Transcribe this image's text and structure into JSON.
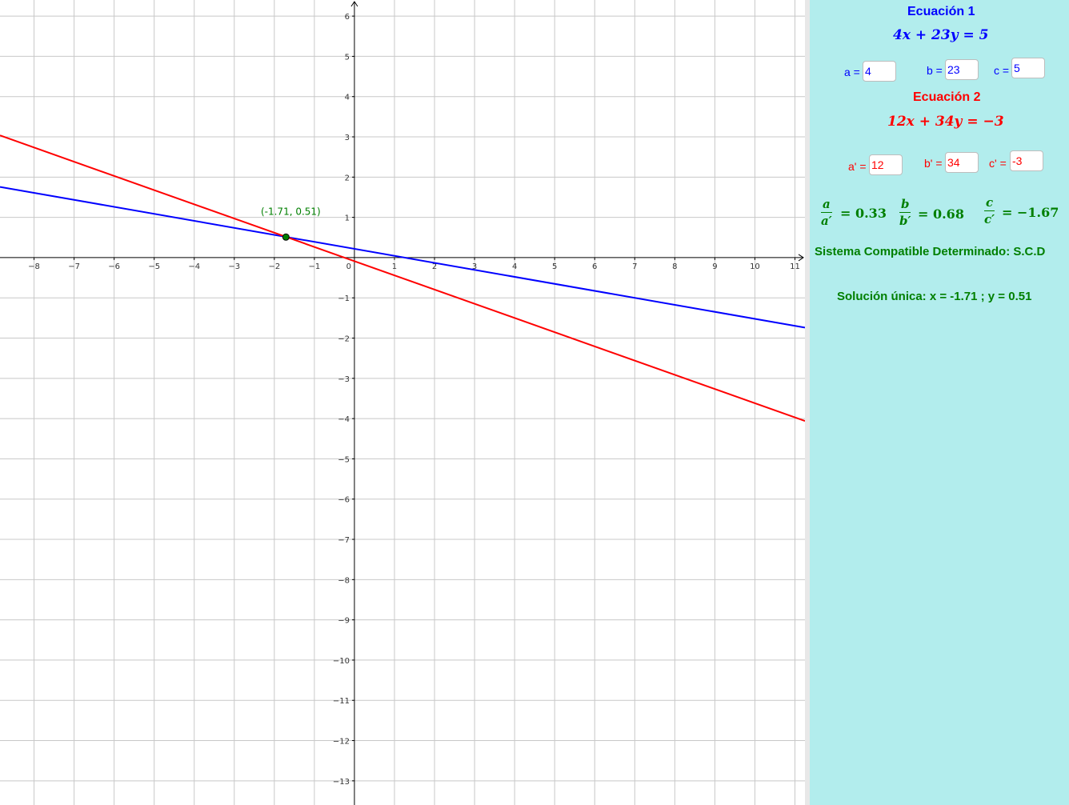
{
  "graph": {
    "x_ticks": [
      "−8",
      "−7",
      "−6",
      "−5",
      "−4",
      "−3",
      "−2",
      "−1",
      "0",
      "1",
      "2",
      "3",
      "4",
      "5",
      "6",
      "7",
      "8",
      "9",
      "10",
      "11"
    ],
    "x_tick_values": [
      -8,
      -7,
      -6,
      -5,
      -4,
      -3,
      -2,
      -1,
      0,
      1,
      2,
      3,
      4,
      5,
      6,
      7,
      8,
      9,
      10,
      11
    ],
    "y_ticks": [
      "6",
      "5",
      "4",
      "3",
      "2",
      "1",
      "−1",
      "−2",
      "−3",
      "−4",
      "−5",
      "−6",
      "−7",
      "−8",
      "−9",
      "−10",
      "−11",
      "−12",
      "−13"
    ],
    "y_tick_values": [
      6,
      5,
      4,
      3,
      2,
      1,
      -1,
      -2,
      -3,
      -4,
      -5,
      -6,
      -7,
      -8,
      -9,
      -10,
      -11,
      -12,
      -13
    ],
    "x_range": [
      -8.85,
      11.25
    ],
    "y_range": [
      -13.6,
      6.4
    ],
    "line1": {
      "a": 4,
      "b": 23,
      "c": 5,
      "color": "#0000ff"
    },
    "line2": {
      "a": 12,
      "b": 34,
      "c": -3,
      "color": "#ff0000"
    },
    "intersection": {
      "x": -1.71,
      "y": 0.51,
      "label": "(-1.71, 0.51)",
      "color": "#007f00"
    }
  },
  "panel": {
    "eq1_title": "Ecuación 1",
    "eq1_formula": "4x + 23y = 5",
    "a_label": "a =",
    "a_value": "4",
    "b_label": "b =",
    "b_value": "23",
    "c_label": "c =",
    "c_value": "5",
    "eq2_title": "Ecuación 2",
    "eq2_formula": "12x + 34y = −3",
    "a2_label": "a' =",
    "a2_value": "12",
    "b2_label": "b' =",
    "b2_value": "34",
    "c2_label": "c' =",
    "c2_value": "-3",
    "ratio_a": {
      "num": "a",
      "den": "a′",
      "value": "= 0.33"
    },
    "ratio_b": {
      "num": "b",
      "den": "b′",
      "value": "= 0.68"
    },
    "ratio_c": {
      "num": "c",
      "den": "c′",
      "value": "= −1.67"
    },
    "system_type": "Sistema Compatible Determinado: S.C.D",
    "solution": "Solución única: x = -1.71 ; y = 0.51"
  },
  "colors": {
    "panel_bg": "#b2eded",
    "blue": "#0000ff",
    "red": "#ff0000",
    "green": "#007f00"
  }
}
